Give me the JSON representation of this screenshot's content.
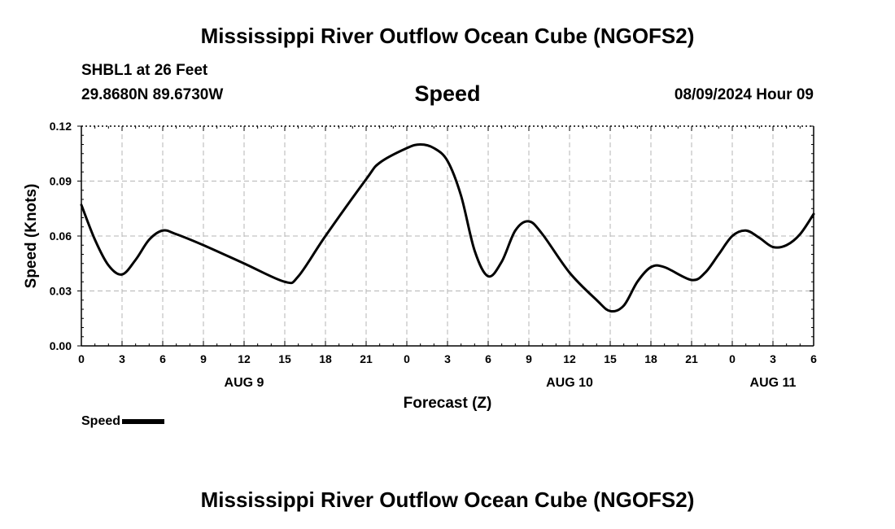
{
  "header": {
    "title": "Mississippi River Outflow Ocean Cube (NGOFS2)",
    "station": "SHBL1 at 26 Feet",
    "coords": "29.8680N  89.6730W",
    "subtitle": "Speed",
    "run_time": "08/09/2024 Hour 09"
  },
  "footer": {
    "title": "Mississippi River Outflow Ocean Cube (NGOFS2)"
  },
  "legend": {
    "label": "Speed",
    "color": "#000000"
  },
  "chart_data": {
    "type": "line",
    "title": "Speed",
    "xlabel": "Forecast (Z)",
    "ylabel": "Speed (Knots)",
    "x_unit": "forecast hour",
    "xlim": [
      0,
      54
    ],
    "ylim": [
      0,
      0.12
    ],
    "y_ticks": [
      "0.00",
      "0.03",
      "0.06",
      "0.09",
      "0.12"
    ],
    "y_tick_values": [
      0,
      0.03,
      0.06,
      0.09,
      0.12
    ],
    "x_ticks": [
      "0",
      "3",
      "6",
      "9",
      "12",
      "15",
      "18",
      "21",
      "0",
      "3",
      "6",
      "9",
      "12",
      "15",
      "18",
      "21",
      "0",
      "3",
      "6"
    ],
    "x_tick_values": [
      0,
      3,
      6,
      9,
      12,
      15,
      18,
      21,
      24,
      27,
      30,
      33,
      36,
      39,
      42,
      45,
      48,
      51,
      54
    ],
    "date_labels": [
      {
        "label": "AUG 9",
        "x": 12
      },
      {
        "label": "AUG 10",
        "x": 36
      },
      {
        "label": "AUG 11",
        "x": 51
      }
    ],
    "grid": true,
    "series": [
      {
        "name": "Speed",
        "color": "#000000",
        "x": [
          0,
          1,
          2,
          3,
          4,
          5,
          6,
          7,
          9,
          12,
          15,
          16,
          18,
          21,
          22,
          24,
          25,
          26,
          27,
          28,
          29,
          30,
          31,
          32,
          33,
          34,
          36,
          38,
          39,
          40,
          41,
          42,
          43,
          45,
          46,
          47,
          48,
          49,
          50,
          51,
          52,
          53,
          54
        ],
        "values": [
          0.077,
          0.058,
          0.044,
          0.039,
          0.047,
          0.058,
          0.063,
          0.061,
          0.055,
          0.045,
          0.035,
          0.038,
          0.06,
          0.091,
          0.1,
          0.108,
          0.11,
          0.108,
          0.101,
          0.082,
          0.052,
          0.038,
          0.046,
          0.063,
          0.068,
          0.061,
          0.04,
          0.025,
          0.019,
          0.022,
          0.035,
          0.043,
          0.043,
          0.036,
          0.04,
          0.05,
          0.06,
          0.063,
          0.059,
          0.054,
          0.055,
          0.061,
          0.072
        ]
      }
    ]
  }
}
